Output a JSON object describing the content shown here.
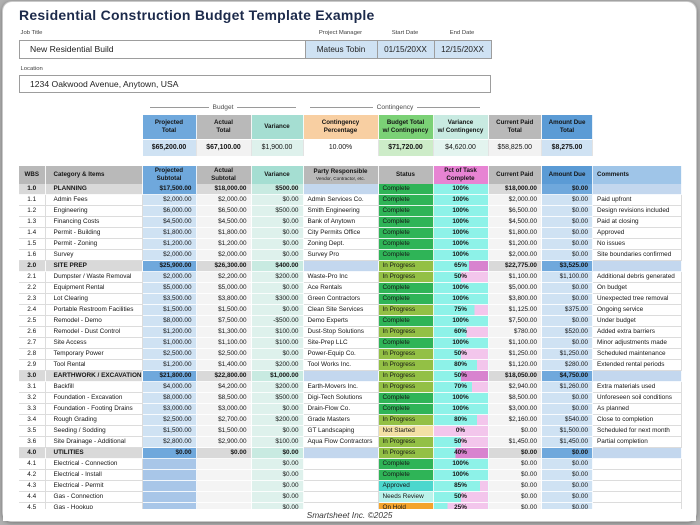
{
  "title": "Residential Construction Budget Template Example",
  "fields": {
    "job_title": {
      "label": "Job Title",
      "value": "New Residential Build"
    },
    "project_manager": {
      "label": "Project Manager",
      "value": "Mateus Tobin"
    },
    "start_date": {
      "label": "Start Date",
      "value": "01/15/20XX"
    },
    "end_date": {
      "label": "End Date",
      "value": "12/15/20XX"
    },
    "location": {
      "label": "Location",
      "value": "1234 Oakwood Avenue, Anytown, USA"
    }
  },
  "groups": {
    "budget": "Budget",
    "contingency": "Contingency"
  },
  "summary": {
    "columns": [
      {
        "label": "Projected\nTotal",
        "value": "$65,200.00",
        "header_bg": "#6fa8dc",
        "value_bg": "#cfe2f3",
        "bold": true
      },
      {
        "label": "Actual\nTotal",
        "value": "$67,100.00",
        "header_bg": "#b9b9b9",
        "value_bg": "#f2f2f2",
        "bold": true
      },
      {
        "label": "Variance",
        "value": "$1,900.00",
        "header_bg": "#a5ded2",
        "value_bg": "#def1ec",
        "bold": false
      },
      {
        "label": "Contingency\nPercentage",
        "value": "10.00%",
        "header_bg": "#f8cfa2",
        "value_bg": "#ffffff",
        "bold": false
      },
      {
        "label": "Budget Total\nw/ Contingency",
        "value": "$71,720.00",
        "header_bg": "#7bd176",
        "value_bg": "#cdecc8",
        "bold": true
      },
      {
        "label": "Variance\nw/ Contingency",
        "value": "$4,620.00",
        "header_bg": "#c8eae1",
        "value_bg": "#e3f4ef",
        "bold": false
      },
      {
        "label": "Current Paid\nTotal",
        "value": "$58,825.00",
        "header_bg": "#b9b9b9",
        "value_bg": "#f2f2f2",
        "bold": false
      },
      {
        "label": "Amount Due\nTotal",
        "value": "$8,275.00",
        "header_bg": "#5b9bd5",
        "value_bg": "#cfe2f3",
        "bold": true
      }
    ]
  },
  "table": {
    "columns": [
      {
        "key": "wbs",
        "label": "WBS"
      },
      {
        "key": "item",
        "label": "Category & Items"
      },
      {
        "key": "projected",
        "label": "Projected\nSubtotal"
      },
      {
        "key": "actual",
        "label": "Actual\nSubtotal"
      },
      {
        "key": "variance",
        "label": "Variance"
      },
      {
        "key": "party",
        "label": "Party Responsible",
        "sub": "Vendor, Contractor, etc."
      },
      {
        "key": "status",
        "label": "Status"
      },
      {
        "key": "pct",
        "label": "Pct of Task\nComplete"
      },
      {
        "key": "paid",
        "label": "Current Paid"
      },
      {
        "key": "due",
        "label": "Amount Due"
      },
      {
        "key": "comments",
        "label": "Comments"
      }
    ],
    "header_bg": {
      "wbs": "#b9b9b9",
      "item": "#b9b9b9",
      "projected": "#6fa8dc",
      "actual": "#b9b9b9",
      "variance": "#a5ded2",
      "party": "#b9b9b9",
      "status": "#b9b9b9",
      "pct": "#e784d3",
      "paid": "#b9b9b9",
      "due": "#5b9bd5",
      "comments": "#9fc5e8"
    },
    "status_colors": {
      "Complete": "#2fb457",
      "In Progress": "#93c045",
      "Not Started": "#f3e0a5",
      "Approved": "#4cd7cd",
      "Needs Review": "#baf2ea",
      "On Hold": "#f4a42c"
    },
    "pct_bar": {
      "fill": "#8df2e8",
      "rest": "#f3c6ec",
      "rest_section": "#d883cf"
    },
    "rows": [
      {
        "wbs": "1.0",
        "item": "PLANNING",
        "projected": "$17,500.00",
        "actual": "$18,000.00",
        "variance": "$500.00",
        "party": "",
        "status": "Complete",
        "pct": 100,
        "paid": "$18,000.00",
        "due": "$0.00",
        "comments": "",
        "section": true
      },
      {
        "wbs": "1.1",
        "item": "Admin Fees",
        "projected": "$2,000.00",
        "actual": "$2,000.00",
        "variance": "$0.00",
        "party": "Admin Services Co.",
        "status": "Complete",
        "pct": 100,
        "paid": "$2,000.00",
        "due": "$0.00",
        "comments": "Paid upfront"
      },
      {
        "wbs": "1.2",
        "item": "Engineering",
        "projected": "$6,000.00",
        "actual": "$6,500.00",
        "variance": "$500.00",
        "party": "Smith Engineering",
        "status": "Complete",
        "pct": 100,
        "paid": "$6,500.00",
        "due": "$0.00",
        "comments": "Design revisions included"
      },
      {
        "wbs": "1.3",
        "item": "Financing Costs",
        "projected": "$4,500.00",
        "actual": "$4,500.00",
        "variance": "$0.00",
        "party": "Bank of Anytown",
        "status": "Complete",
        "pct": 100,
        "paid": "$4,500.00",
        "due": "$0.00",
        "comments": "Paid at closing"
      },
      {
        "wbs": "1.4",
        "item": "Permit - Building",
        "projected": "$1,800.00",
        "actual": "$1,800.00",
        "variance": "$0.00",
        "party": "City Permits Office",
        "status": "Complete",
        "pct": 100,
        "paid": "$1,800.00",
        "due": "$0.00",
        "comments": "Approved"
      },
      {
        "wbs": "1.5",
        "item": "Permit - Zoning",
        "projected": "$1,200.00",
        "actual": "$1,200.00",
        "variance": "$0.00",
        "party": "Zoning Dept.",
        "status": "Complete",
        "pct": 100,
        "paid": "$1,200.00",
        "due": "$0.00",
        "comments": "No issues"
      },
      {
        "wbs": "1.6",
        "item": "Survey",
        "projected": "$2,000.00",
        "actual": "$2,000.00",
        "variance": "$0.00",
        "party": "Survey Pro",
        "status": "Complete",
        "pct": 100,
        "paid": "$2,000.00",
        "due": "$0.00",
        "comments": "Site boundaries confirmed"
      },
      {
        "wbs": "2.0",
        "item": "SITE PREP",
        "projected": "$25,900.00",
        "actual": "$26,300.00",
        "variance": "$400.00",
        "party": "",
        "status": "In Progress",
        "pct": 65,
        "paid": "$22,775.00",
        "due": "$3,525.00",
        "comments": "",
        "section": true
      },
      {
        "wbs": "2.1",
        "item": "Dumpster / Waste Removal",
        "projected": "$2,000.00",
        "actual": "$2,200.00",
        "variance": "$200.00",
        "party": "Waste-Pro Inc",
        "status": "In Progress",
        "pct": 50,
        "paid": "$1,100.00",
        "due": "$1,100.00",
        "comments": "Additional debris generated"
      },
      {
        "wbs": "2.2",
        "item": "Equipment Rental",
        "projected": "$5,000.00",
        "actual": "$5,000.00",
        "variance": "$0.00",
        "party": "Ace Rentals",
        "status": "Complete",
        "pct": 100,
        "paid": "$5,000.00",
        "due": "$0.00",
        "comments": "On budget"
      },
      {
        "wbs": "2.3",
        "item": "Lot Clearing",
        "projected": "$3,500.00",
        "actual": "$3,800.00",
        "variance": "$300.00",
        "party": "Green Contractors",
        "status": "Complete",
        "pct": 100,
        "paid": "$3,800.00",
        "due": "$0.00",
        "comments": "Unexpected tree removal"
      },
      {
        "wbs": "2.4",
        "item": "Portable Restroom Facilities",
        "projected": "$1,500.00",
        "actual": "$1,500.00",
        "variance": "$0.00",
        "party": "Clean Site Services",
        "status": "In Progress",
        "pct": 75,
        "paid": "$1,125.00",
        "due": "$375.00",
        "comments": "Ongoing service"
      },
      {
        "wbs": "2.5",
        "item": "Remodel - Demo",
        "projected": "$8,000.00",
        "actual": "$7,500.00",
        "variance": "-$500.00",
        "party": "Demo Experts",
        "status": "Complete",
        "pct": 100,
        "paid": "$7,500.00",
        "due": "$0.00",
        "comments": "Under budget"
      },
      {
        "wbs": "2.6",
        "item": "Remodel - Dust Control",
        "projected": "$1,200.00",
        "actual": "$1,300.00",
        "variance": "$100.00",
        "party": "Dust-Stop Solutions",
        "status": "In Progress",
        "pct": 60,
        "paid": "$780.00",
        "due": "$520.00",
        "comments": "Added extra barriers"
      },
      {
        "wbs": "2.7",
        "item": "Site Access",
        "projected": "$1,000.00",
        "actual": "$1,100.00",
        "variance": "$100.00",
        "party": "Site-Prep LLC",
        "status": "Complete",
        "pct": 100,
        "paid": "$1,100.00",
        "due": "$0.00",
        "comments": "Minor adjustments made"
      },
      {
        "wbs": "2.8",
        "item": "Temporary Power",
        "projected": "$2,500.00",
        "actual": "$2,500.00",
        "variance": "$0.00",
        "party": "Power-Equip Co.",
        "status": "In Progress",
        "pct": 50,
        "paid": "$1,250.00",
        "due": "$1,250.00",
        "comments": "Scheduled maintenance"
      },
      {
        "wbs": "2.9",
        "item": "Tool Rental",
        "projected": "$1,200.00",
        "actual": "$1,400.00",
        "variance": "$200.00",
        "party": "Tool Works Inc.",
        "status": "In Progress",
        "pct": 80,
        "paid": "$1,120.00",
        "due": "$280.00",
        "comments": "Extended rental periods"
      },
      {
        "wbs": "3.0",
        "item": "EARTHWORK / EXCAVATION",
        "projected": "$21,800.00",
        "actual": "$22,800.00",
        "variance": "$1,000.00",
        "party": "",
        "status": "In Progress",
        "pct": 50,
        "paid": "$18,050.00",
        "due": "$4,750.00",
        "comments": "",
        "section": true
      },
      {
        "wbs": "3.1",
        "item": "Backfill",
        "projected": "$4,000.00",
        "actual": "$4,200.00",
        "variance": "$200.00",
        "party": "Earth-Movers Inc.",
        "status": "In Progress",
        "pct": 70,
        "paid": "$2,940.00",
        "due": "$1,260.00",
        "comments": "Extra materials used"
      },
      {
        "wbs": "3.2",
        "item": "Foundation - Excavation",
        "projected": "$8,000.00",
        "actual": "$8,500.00",
        "variance": "$500.00",
        "party": "Digi-Tech Solutions",
        "status": "Complete",
        "pct": 100,
        "paid": "$8,500.00",
        "due": "$0.00",
        "comments": "Unforeseen soil conditions"
      },
      {
        "wbs": "3.3",
        "item": "Foundation - Footing Drains",
        "projected": "$3,000.00",
        "actual": "$3,000.00",
        "variance": "$0.00",
        "party": "Drain-Flow Co.",
        "status": "Complete",
        "pct": 100,
        "paid": "$3,000.00",
        "due": "$0.00",
        "comments": "As planned"
      },
      {
        "wbs": "3.4",
        "item": "Rough Grading",
        "projected": "$2,500.00",
        "actual": "$2,700.00",
        "variance": "$200.00",
        "party": "Grade Masters",
        "status": "In Progress",
        "pct": 80,
        "paid": "$2,160.00",
        "due": "$540.00",
        "comments": "Close to completion"
      },
      {
        "wbs": "3.5",
        "item": "Seeding / Sodding",
        "projected": "$1,500.00",
        "actual": "$1,500.00",
        "variance": "$0.00",
        "party": "GT Landscaping",
        "status": "Not Started",
        "pct": 0,
        "paid": "$0.00",
        "due": "$1,500.00",
        "comments": "Scheduled for next month"
      },
      {
        "wbs": "3.6",
        "item": "Site Drainage - Additional",
        "projected": "$2,800.00",
        "actual": "$2,900.00",
        "variance": "$100.00",
        "party": "Aqua Flow Contractors",
        "status": "In Progress",
        "pct": 50,
        "paid": "$1,450.00",
        "due": "$1,450.00",
        "comments": "Partial completion"
      },
      {
        "wbs": "4.0",
        "item": "UTILITIES",
        "projected": "$0.00",
        "actual": "$0.00",
        "variance": "$0.00",
        "party": "",
        "status": "In Progress",
        "pct": 40,
        "paid": "$0.00",
        "due": "$0.00",
        "comments": "",
        "section": true
      },
      {
        "wbs": "4.1",
        "item": "Electrical - Connection",
        "projected": "",
        "actual": "",
        "variance": "$0.00",
        "party": "",
        "status": "Complete",
        "pct": 100,
        "paid": "$0.00",
        "due": "$0.00",
        "comments": ""
      },
      {
        "wbs": "4.2",
        "item": "Electrical - Install",
        "projected": "",
        "actual": "",
        "variance": "$0.00",
        "party": "",
        "status": "Complete",
        "pct": 100,
        "paid": "$0.00",
        "due": "$0.00",
        "comments": ""
      },
      {
        "wbs": "4.3",
        "item": "Electrical - Permit",
        "projected": "",
        "actual": "",
        "variance": "$0.00",
        "party": "",
        "status": "Approved",
        "pct": 85,
        "paid": "$0.00",
        "due": "$0.00",
        "comments": ""
      },
      {
        "wbs": "4.4",
        "item": "Gas - Connection",
        "projected": "",
        "actual": "",
        "variance": "$0.00",
        "party": "",
        "status": "Needs Review",
        "pct": 50,
        "paid": "$0.00",
        "due": "$0.00",
        "comments": ""
      },
      {
        "wbs": "4.5",
        "item": "Gas - Hookup",
        "projected": "",
        "actual": "",
        "variance": "$0.00",
        "party": "",
        "status": "On Hold",
        "pct": 25,
        "paid": "$0.00",
        "due": "$0.00",
        "comments": ""
      }
    ],
    "cell_colors": {
      "data": {
        "projected": "#cfe2f3",
        "projected_empty": "#a8c6e8",
        "actual": "#f4f4f4",
        "variance": "#def1ec",
        "paid": "#f4f4f4",
        "due": "#cfe2f3",
        "white": "#ffffff"
      },
      "section": {
        "gray": "#d9d9d9",
        "projected": "#6fa8dc",
        "actual": "#d9d9d9",
        "variance": "#c8eae1",
        "paid": "#d9d9d9",
        "due": "#6fa8dc",
        "bluelight": "#c3d7ee"
      }
    }
  },
  "footer": "Smartsheet Inc. ©2025"
}
